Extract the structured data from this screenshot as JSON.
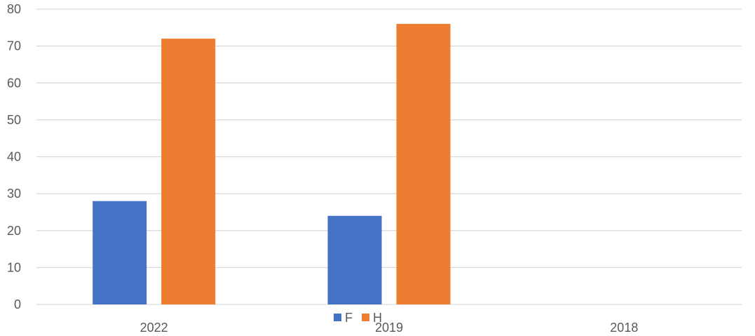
{
  "chart_data": {
    "type": "bar",
    "title": "",
    "xlabel": "",
    "ylabel": "",
    "categories": [
      "2022",
      "2019",
      "2018"
    ],
    "series": [
      {
        "name": "F",
        "color": "#4472C4",
        "values": [
          28,
          24,
          null
        ]
      },
      {
        "name": "H",
        "color": "#ED7D31",
        "values": [
          72,
          76,
          null
        ]
      }
    ],
    "ylim": [
      0,
      80
    ],
    "yticks": [
      "0",
      "10",
      "20",
      "30",
      "40",
      "50",
      "60",
      "70",
      "80"
    ],
    "grid": true,
    "legend": "bottom"
  }
}
